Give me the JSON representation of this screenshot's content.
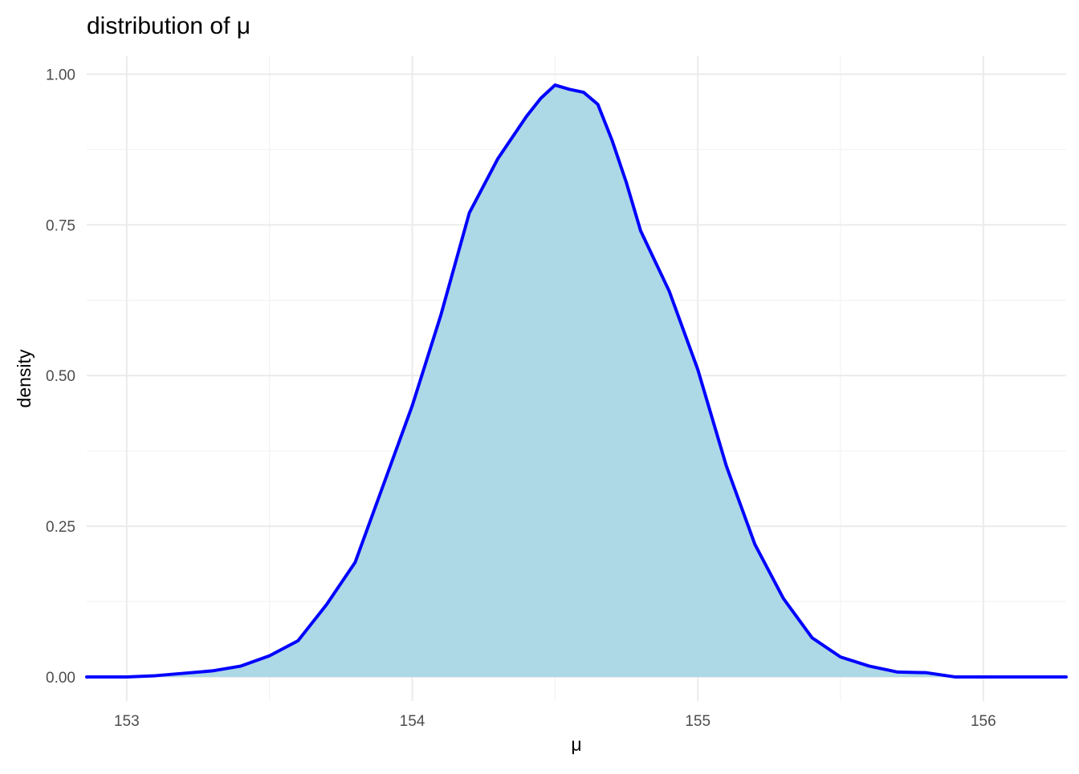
{
  "chart_data": {
    "type": "area",
    "title": "distribution of μ",
    "xlabel": "μ",
    "ylabel": "density",
    "xlim": [
      152.86,
      156.29
    ],
    "ylim": [
      -0.04,
      1.03
    ],
    "x_ticks": [
      153,
      154,
      155,
      156
    ],
    "x_tick_labels": [
      "153",
      "154",
      "155",
      "156"
    ],
    "y_ticks": [
      0,
      0.25,
      0.5,
      0.75,
      1.0
    ],
    "y_tick_labels": [
      "0.00",
      "0.25",
      "0.50",
      "0.75",
      "1.00"
    ],
    "grid": true,
    "legend": "none",
    "series": [
      {
        "x": [
          152.86,
          153.0,
          153.1,
          153.2,
          153.3,
          153.4,
          153.5,
          153.6,
          153.7,
          153.8,
          153.9,
          154.0,
          154.1,
          154.2,
          154.3,
          154.4,
          154.45,
          154.5,
          154.55,
          154.6,
          154.65,
          154.7,
          154.75,
          154.8,
          154.9,
          155.0,
          155.1,
          155.2,
          155.3,
          155.4,
          155.5,
          155.6,
          155.7,
          155.8,
          155.9,
          156.0,
          156.1,
          156.2,
          156.29
        ],
        "y": [
          0.0,
          0.0,
          0.002,
          0.006,
          0.01,
          0.018,
          0.035,
          0.06,
          0.12,
          0.19,
          0.32,
          0.45,
          0.6,
          0.77,
          0.86,
          0.93,
          0.96,
          0.982,
          0.975,
          0.97,
          0.95,
          0.89,
          0.82,
          0.74,
          0.64,
          0.51,
          0.35,
          0.22,
          0.13,
          0.065,
          0.033,
          0.018,
          0.008,
          0.007,
          0.0,
          0.0,
          0.0,
          0.0,
          0.0
        ],
        "line_color": "#0000ff",
        "fill_color": "#add8e6"
      }
    ]
  }
}
